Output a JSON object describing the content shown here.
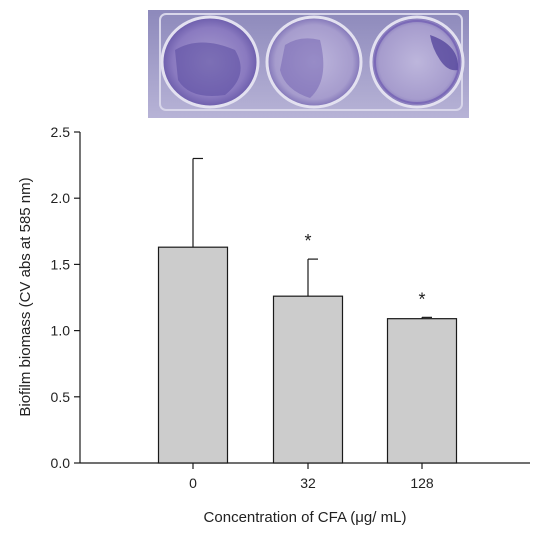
{
  "colors": {
    "bar_fill": "#cccccc",
    "bar_stroke": "#1a1a1a",
    "axis": "#1a1a1a",
    "stain_purple": "#6a55b0",
    "photo_background": "#9a96c2"
  },
  "photo": {
    "description_icon": "well-plate-photo"
  },
  "chart_data": {
    "type": "bar",
    "categories": [
      "0",
      "32",
      "128"
    ],
    "values": [
      1.63,
      1.26,
      1.09
    ],
    "error_plus": [
      0.67,
      0.28,
      0.01
    ],
    "significance": [
      "",
      "*",
      "*"
    ],
    "title": "",
    "xlabel": "Concentration of CFA (μg/ mL)",
    "ylabel": "Biofilm biomass (CV abs at 585 nm)",
    "ylim": [
      0,
      2.5
    ],
    "yticks": [
      "0.0",
      "0.5",
      "1.0",
      "1.5",
      "2.0",
      "2.5"
    ],
    "grid": false,
    "legend": "none"
  }
}
